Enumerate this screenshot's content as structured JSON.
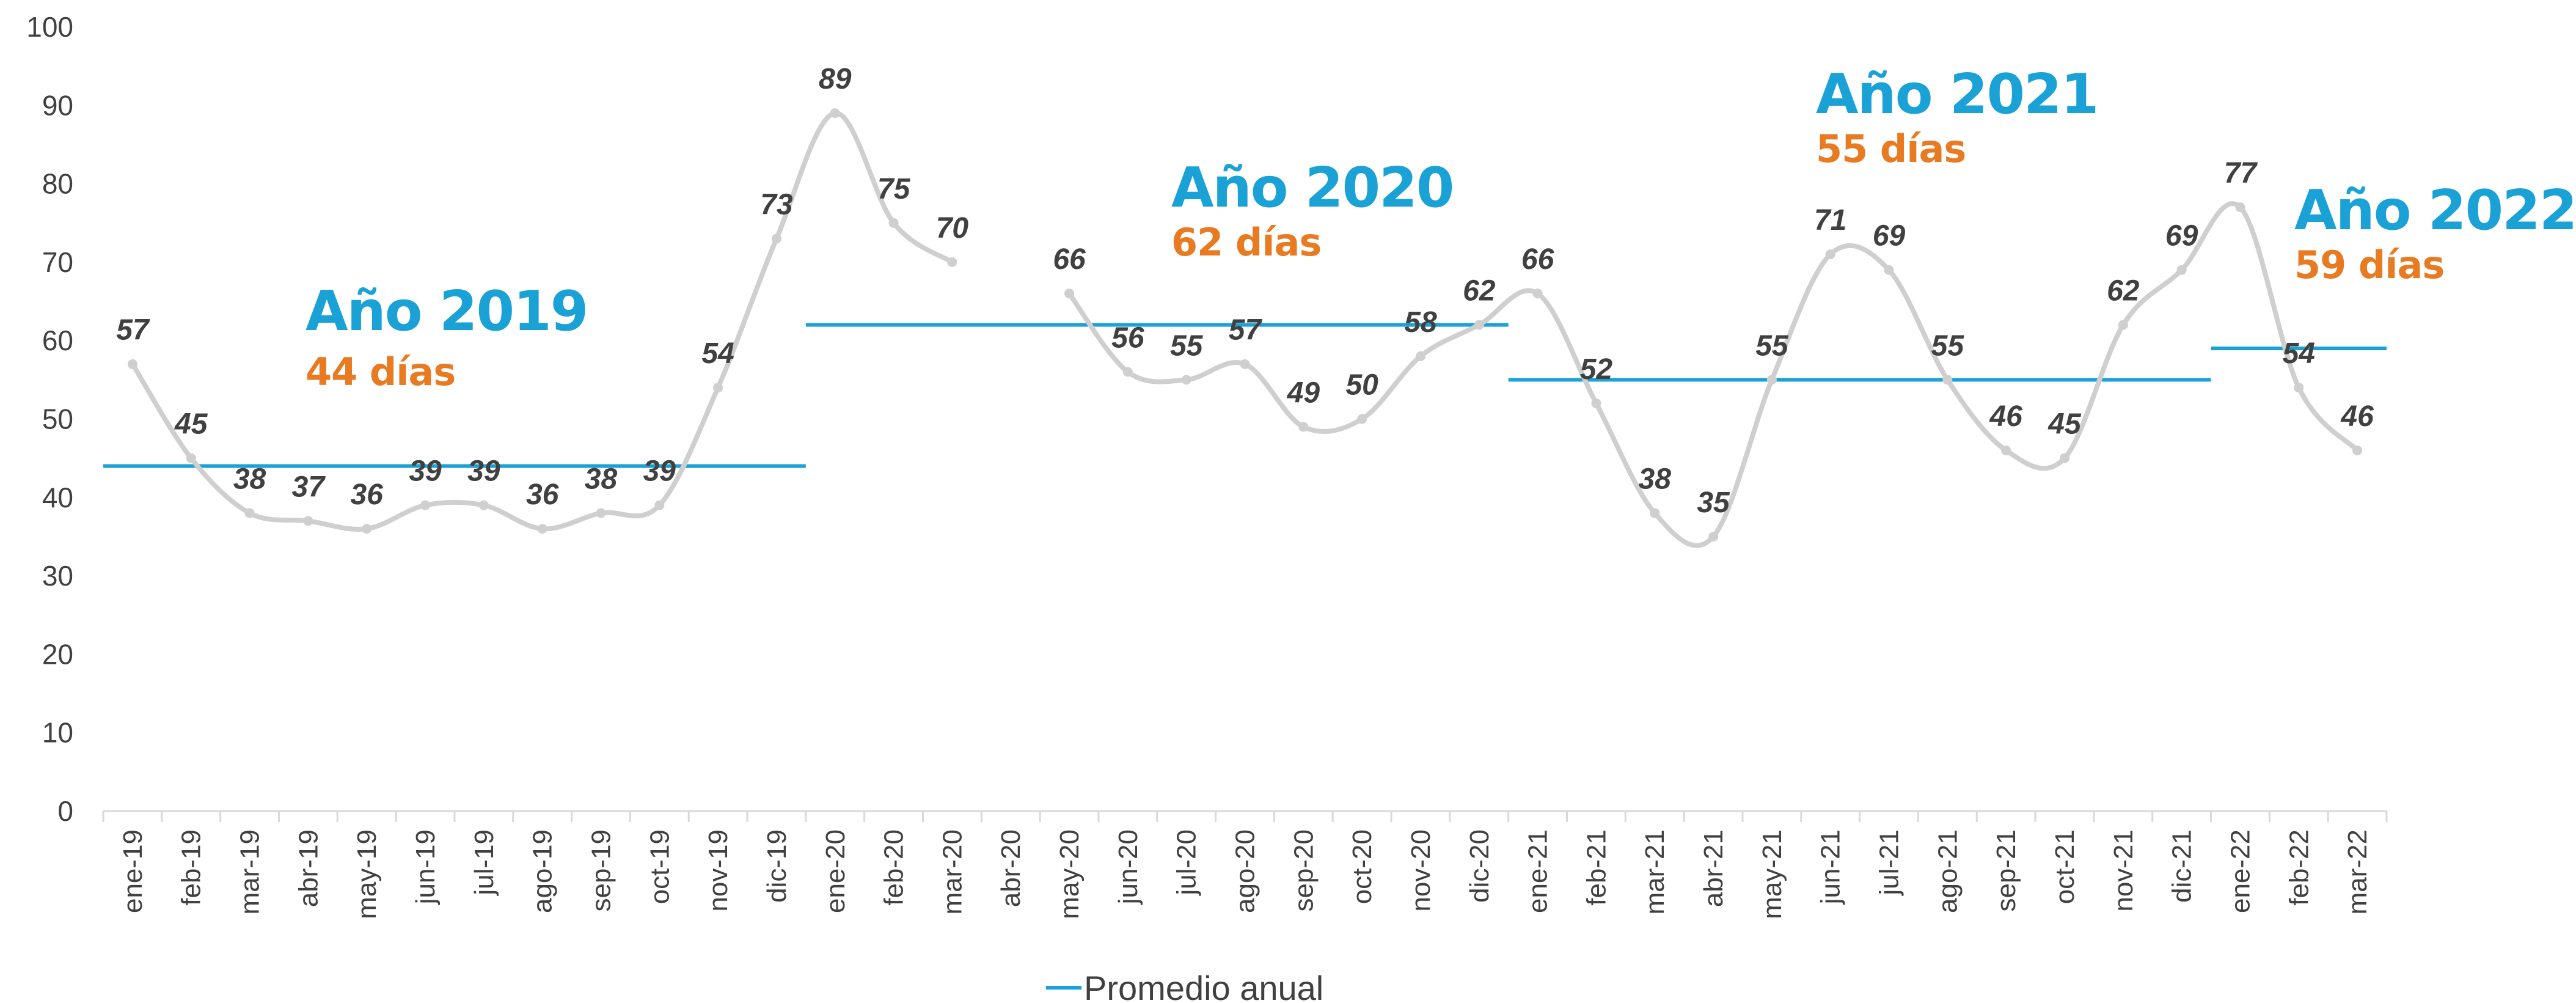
{
  "chart_data": {
    "type": "line",
    "categories": [
      "ene-19",
      "feb-19",
      "mar-19",
      "abr-19",
      "may-19",
      "jun-19",
      "jul-19",
      "ago-19",
      "sep-19",
      "oct-19",
      "nov-19",
      "dic-19",
      "ene-20",
      "feb-20",
      "mar-20",
      "abr-20",
      "may-20",
      "jun-20",
      "jul-20",
      "ago-20",
      "sep-20",
      "oct-20",
      "nov-20",
      "dic-20",
      "ene-21",
      "feb-21",
      "mar-21",
      "abr-21",
      "may-21",
      "jun-21",
      "jul-21",
      "ago-21",
      "sep-21",
      "oct-21",
      "nov-21",
      "dic-21",
      "ene-22",
      "feb-22",
      "mar-22"
    ],
    "series": [
      {
        "values": [
          57,
          45,
          38,
          37,
          36,
          39,
          39,
          36,
          38,
          39,
          54,
          73,
          89,
          75,
          70,
          null,
          66,
          56,
          55,
          57,
          49,
          50,
          58,
          62,
          66,
          52,
          38,
          35,
          55,
          71,
          69,
          55,
          46,
          45,
          62,
          69,
          77,
          54,
          46
        ],
        "color": "#cfcfcf",
        "smooth": true
      },
      {
        "name": "Promedio anual",
        "color": "#1aa1d6",
        "segments": [
          {
            "from": "ene-19",
            "to": "dic-19",
            "value": 44
          },
          {
            "from": "ene-20",
            "to": "dic-20",
            "value": 62
          },
          {
            "from": "ene-21",
            "to": "dic-21",
            "value": 55
          },
          {
            "from": "ene-22",
            "to": "mar-22",
            "value": 59
          }
        ]
      }
    ],
    "ylim": [
      0,
      100
    ],
    "yticks": [
      0,
      10,
      20,
      30,
      40,
      50,
      60,
      70,
      80,
      90,
      100
    ],
    "grid": false,
    "legend": {
      "position": "bottom",
      "entries": [
        "Promedio anual"
      ]
    },
    "annotations": [
      {
        "title": "Año 2019",
        "value": "44 días"
      },
      {
        "title": "Año 2020",
        "value": "62 días"
      },
      {
        "title": "Año 2021",
        "value": "55 días"
      },
      {
        "title": "Año 2022",
        "value": "59 días"
      }
    ],
    "colors": {
      "title": "#1aa1d6",
      "value": "#e87b22",
      "axis": "#d9d9d9",
      "text": "#404040"
    }
  }
}
